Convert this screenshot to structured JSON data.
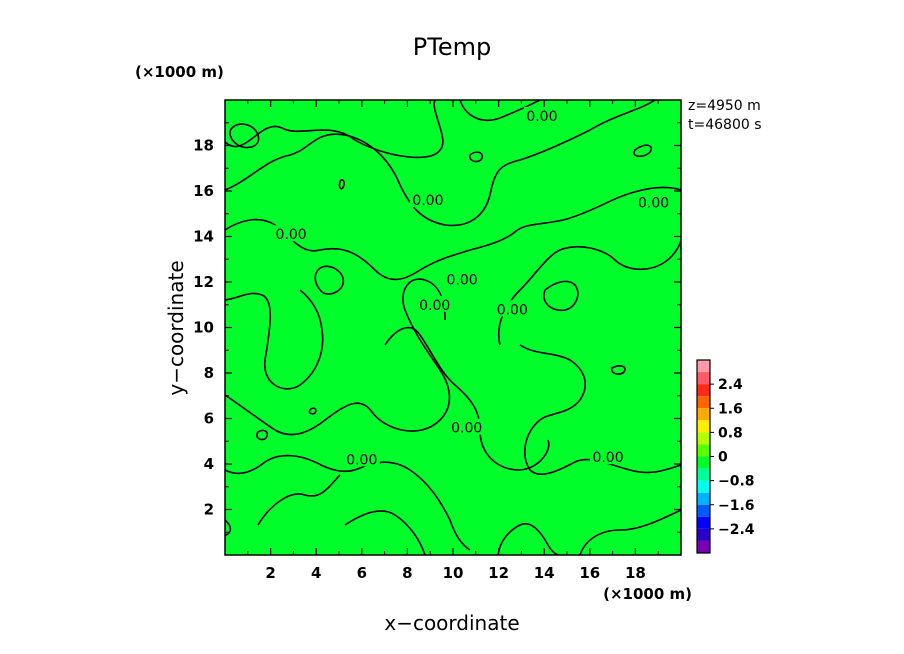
{
  "chart_data": {
    "type": "heatmap",
    "title": "PTemp",
    "xlabel": "x−coordinate",
    "ylabel": "y−coordinate",
    "x_unit": "(×1000 m)",
    "y_unit": "(×1000 m)",
    "xlim": [
      0,
      20
    ],
    "ylim": [
      0,
      20
    ],
    "x_ticks": [
      "2",
      "4",
      "6",
      "8",
      "10",
      "12",
      "14",
      "16",
      "18"
    ],
    "y_ticks": [
      "2",
      "4",
      "6",
      "8",
      "10",
      "12",
      "14",
      "16",
      "18"
    ],
    "info": [
      "z=4950  m",
      "t=46800  s"
    ],
    "field_value": 0,
    "contour_level": "0.00",
    "contour_labels": [
      {
        "x": 13.9,
        "y": 19.3,
        "text": "0.00"
      },
      {
        "x": 8.9,
        "y": 15.6,
        "text": "0.00"
      },
      {
        "x": 18.8,
        "y": 15.5,
        "text": "0.00"
      },
      {
        "x": 2.9,
        "y": 14.1,
        "text": "0.00"
      },
      {
        "x": 10.4,
        "y": 12.1,
        "text": "0.00"
      },
      {
        "x": 9.2,
        "y": 11.0,
        "text": "0.00"
      },
      {
        "x": 12.6,
        "y": 10.8,
        "text": "0.00"
      },
      {
        "x": 10.6,
        "y": 5.6,
        "text": "0.00"
      },
      {
        "x": 6.0,
        "y": 4.2,
        "text": "0.00"
      },
      {
        "x": 16.8,
        "y": 4.3,
        "text": "0.00"
      }
    ],
    "colorbar": {
      "ticks": [
        "2.4",
        "1.6",
        "0.8",
        "0",
        "−0.8",
        "−1.6",
        "−2.4"
      ],
      "tick_values": [
        2.4,
        1.6,
        0.8,
        0,
        -0.8,
        -1.6,
        -2.4
      ],
      "range": [
        -3.2,
        3.2
      ],
      "levels": [
        {
          "from": 2.8,
          "to": 3.2,
          "color": "#ff9aa6"
        },
        {
          "from": 2.4,
          "to": 2.8,
          "color": "#ff5a6a"
        },
        {
          "from": 2.0,
          "to": 2.4,
          "color": "#ff2a1a"
        },
        {
          "from": 1.6,
          "to": 2.0,
          "color": "#ff6600"
        },
        {
          "from": 1.2,
          "to": 1.6,
          "color": "#ffaa00"
        },
        {
          "from": 0.8,
          "to": 1.2,
          "color": "#ffee00"
        },
        {
          "from": 0.4,
          "to": 0.8,
          "color": "#b4ff00"
        },
        {
          "from": 0.0,
          "to": 0.4,
          "color": "#5aff00"
        },
        {
          "from": -0.4,
          "to": 0.0,
          "color": "#00ff2a"
        },
        {
          "from": -0.8,
          "to": -0.4,
          "color": "#00ff96"
        },
        {
          "from": -1.2,
          "to": -0.8,
          "color": "#00ffee"
        },
        {
          "from": -1.6,
          "to": -1.2,
          "color": "#00b4ff"
        },
        {
          "from": -2.0,
          "to": -1.6,
          "color": "#005aff"
        },
        {
          "from": -2.4,
          "to": -2.0,
          "color": "#0000ff"
        },
        {
          "from": -2.8,
          "to": -2.4,
          "color": "#2a00c8"
        },
        {
          "from": -3.2,
          "to": -2.8,
          "color": "#7800b4"
        }
      ]
    }
  },
  "colors": {
    "field": "#00ff2a",
    "field_alt": "#5aff00",
    "contour": "#000000",
    "axes": "#000000"
  }
}
